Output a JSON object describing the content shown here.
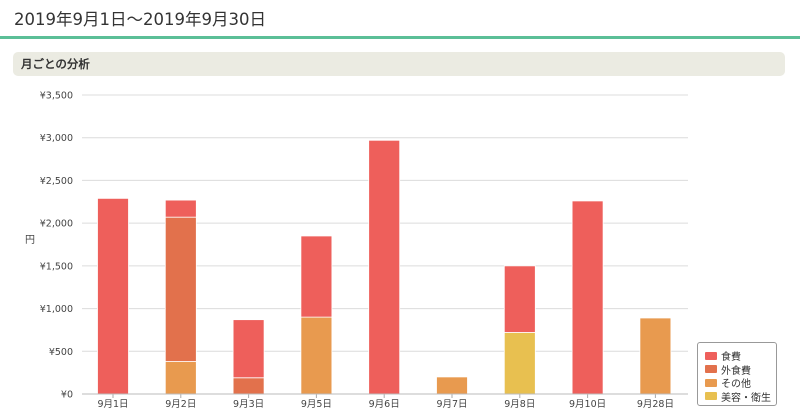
{
  "header": {
    "title": "2019年9月1日～2019年9月30日"
  },
  "section": {
    "title": "月ごとの分析"
  },
  "chart_data": {
    "type": "bar",
    "stacked": true,
    "categories": [
      "9月1日",
      "9月2日",
      "9月3日",
      "9月5日",
      "9月6日",
      "9月7日",
      "9月8日",
      "9月10日",
      "9月28日"
    ],
    "series": [
      {
        "name": "食費",
        "color": "#ee5f5b",
        "values": [
          2290,
          200,
          680,
          950,
          2970,
          0,
          780,
          2260,
          0
        ]
      },
      {
        "name": "外食費",
        "color": "#e2714c",
        "values": [
          0,
          1690,
          190,
          0,
          0,
          0,
          0,
          0,
          0
        ]
      },
      {
        "name": "その他",
        "color": "#e89a4f",
        "values": [
          0,
          380,
          0,
          900,
          0,
          200,
          0,
          0,
          890
        ]
      },
      {
        "name": "美容・衛生",
        "color": "#e8c050",
        "values": [
          0,
          0,
          0,
          0,
          0,
          0,
          720,
          0,
          0
        ]
      }
    ],
    "ylabel": "円",
    "ylim": [
      0,
      3500
    ],
    "yticks": [
      0,
      500,
      1000,
      1500,
      2000,
      2500,
      3000,
      3500
    ],
    "ytick_labels": [
      "¥0",
      "¥500",
      "¥1,000",
      "¥1,500",
      "¥2,000",
      "¥2,500",
      "¥3,000",
      "¥3,500"
    ],
    "grid": true,
    "legend_position": "bottom-right"
  }
}
